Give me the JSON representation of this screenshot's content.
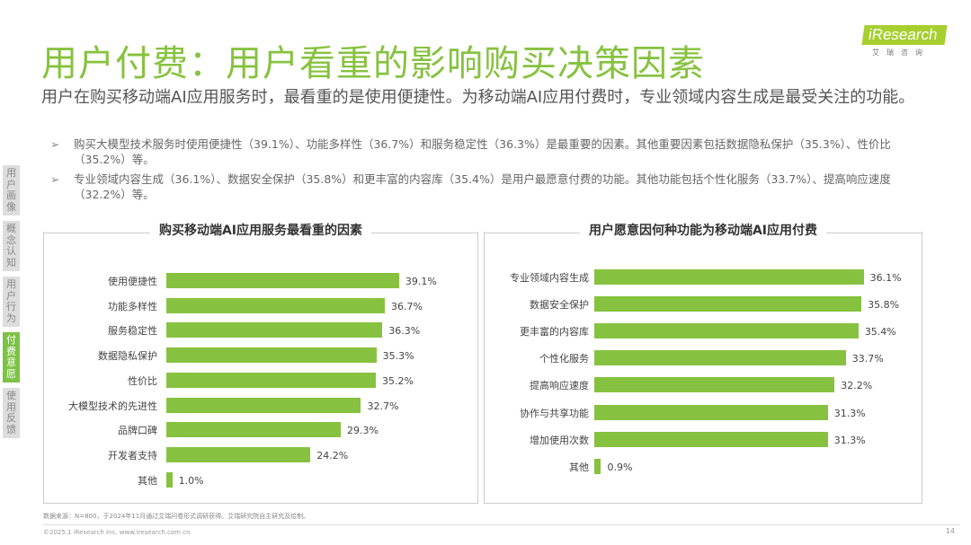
{
  "header": {
    "title": "用户付费：用户看重的影响购买决策因素",
    "logo": "iResearch",
    "logo_sub": "艾瑞咨询"
  },
  "lead": "用户在购买移动端AI应用服务时，最看重的是使用便捷性。为移动端AI应用付费时，专业领域内容生成是最受关注的功能。",
  "bullets": [
    "购买大模型技术服务时使用便捷性（39.1%）、功能多样性（36.7%）和服务稳定性（36.3%）是最重要的因素。其他重要因素包括数据隐私保护（35.3%）、性价比（35.2%）等。",
    "专业领域内容生成（36.1%）、数据安全保护（35.8%）和更丰富的内容库（35.4%）是用户最愿意付费的功能。其他功能包括个性化服务（33.7%）、提高响应速度（32.2%）等。"
  ],
  "bullet_marker": "➢",
  "sidebar": [
    {
      "label": "用户画像",
      "active": false
    },
    {
      "label": "概念认知",
      "active": false
    },
    {
      "label": "用户行为",
      "active": false
    },
    {
      "label": "付费意愿",
      "active": true
    },
    {
      "label": "使用反馈",
      "active": false
    }
  ],
  "accent": "#86c23f",
  "chart_data": [
    {
      "type": "bar",
      "orientation": "horizontal",
      "title": "购买移动端AI应用服务最看重的因素",
      "categories": [
        "使用便捷性",
        "功能多样性",
        "服务稳定性",
        "数据隐私保护",
        "性价比",
        "大模型技术的先进性",
        "品牌口碑",
        "开发者支持",
        "其他"
      ],
      "values": [
        39.1,
        36.7,
        36.3,
        35.3,
        35.2,
        32.7,
        29.3,
        24.2,
        1.0
      ],
      "labels": [
        "39.1%",
        "36.7%",
        "36.3%",
        "35.3%",
        "35.2%",
        "32.7%",
        "29.3%",
        "24.2%",
        "1.0%"
      ],
      "color": "#86c23f"
    },
    {
      "type": "bar",
      "orientation": "horizontal",
      "title": "用户愿意因何种功能为移动端AI应用付费",
      "categories": [
        "专业领域内容生成",
        "数据安全保护",
        "更丰富的内容库",
        "个性化服务",
        "提高响应速度",
        "协作与共享功能",
        "增加使用次数",
        "其他"
      ],
      "values": [
        36.1,
        35.8,
        35.4,
        33.7,
        32.2,
        31.3,
        31.3,
        0.9
      ],
      "labels": [
        "36.1%",
        "35.8%",
        "35.4%",
        "33.7%",
        "32.2%",
        "31.3%",
        "31.3%",
        "0.9%"
      ],
      "color": "#86c23f"
    }
  ],
  "footer": {
    "source": "数据来源：N=800，于2024年11月通过艾瑞问卷形式调研获得。艾瑞研究院自主研究及绘制。",
    "copyright": "©2025.1 iResearch Inc. www.iresearch.com.cn",
    "page": "14"
  }
}
